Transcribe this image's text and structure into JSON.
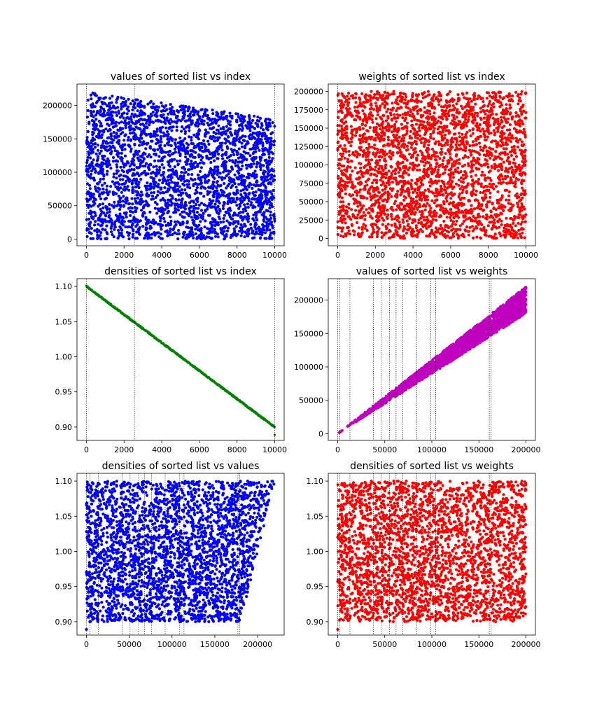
{
  "figure": {
    "panels": [
      {
        "id": "p1",
        "title": "values of sorted list vs index",
        "type": "scatter",
        "color": "#0000ff",
        "xlim": [
          -500,
          10500
        ],
        "ylim": [
          -10000,
          232000
        ],
        "xticks": [
          0,
          2000,
          4000,
          6000,
          8000,
          10000
        ],
        "yticks": [
          0,
          50000,
          100000,
          150000,
          200000
        ],
        "vlines": [
          0,
          2550,
          10000
        ],
        "shape": {
          "kind": "band",
          "x": [
            0,
            10000
          ],
          "ylow": [
            0,
            0
          ],
          "yhigh": [
            220000,
            180000
          ]
        },
        "n_points": 3000
      },
      {
        "id": "p2",
        "title": "weights of sorted list vs index",
        "type": "scatter",
        "color": "#ff0000",
        "xlim": [
          -500,
          10500
        ],
        "ylim": [
          -10000,
          210000
        ],
        "xticks": [
          0,
          2000,
          4000,
          6000,
          8000,
          10000
        ],
        "yticks": [
          0,
          25000,
          50000,
          75000,
          100000,
          125000,
          150000,
          175000,
          200000
        ],
        "vlines": [
          0,
          2550,
          10000
        ],
        "shape": {
          "kind": "band",
          "x": [
            0,
            10000
          ],
          "ylow": [
            0,
            0
          ],
          "yhigh": [
            200000,
            200000
          ]
        },
        "n_points": 3000
      },
      {
        "id": "p3",
        "title": "densities of sorted list vs index",
        "type": "scatter",
        "color": "#008000",
        "xlim": [
          -500,
          10500
        ],
        "ylim": [
          0.881,
          1.111
        ],
        "xticks": [
          0,
          2000,
          4000,
          6000,
          8000,
          10000
        ],
        "yticks": [
          0.9,
          0.95,
          1.0,
          1.05,
          1.1
        ],
        "vlines": [
          0,
          2550,
          10000
        ],
        "shape": {
          "kind": "line",
          "x": [
            0,
            10000
          ],
          "y": [
            1.1,
            0.9
          ],
          "jitter": 0.002,
          "outliers": [
            [
              10000,
              0.889
            ]
          ]
        },
        "n_points": 700
      },
      {
        "id": "p4",
        "title": "values of sorted list vs weights",
        "type": "scatter",
        "color": "#bf00bf",
        "xlim": [
          -10000,
          210000
        ],
        "ylim": [
          -10000,
          232000
        ],
        "xticks": [
          0,
          50000,
          100000,
          150000,
          200000
        ],
        "yticks": [
          0,
          50000,
          100000,
          150000,
          200000
        ],
        "vlines": [
          0,
          2000,
          13000,
          38000,
          46000,
          55000,
          62000,
          69000,
          84000,
          99000,
          104000,
          161000,
          163000
        ],
        "shape": {
          "kind": "wedge",
          "x": [
            0,
            200000
          ],
          "slope_low": 0.9,
          "slope_high": 1.1
        },
        "n_points": 2500
      },
      {
        "id": "p5",
        "title": "densities of sorted list vs values",
        "type": "scatter",
        "color": "#0000ff",
        "xlim": [
          -11000,
          231000
        ],
        "ylim": [
          0.881,
          1.111
        ],
        "xticks": [
          0,
          50000,
          100000,
          150000,
          200000
        ],
        "yticks": [
          0.9,
          0.95,
          1.0,
          1.05,
          1.1
        ],
        "vlines": [
          0,
          4000,
          14000,
          42000,
          51000,
          61000,
          68000,
          76000,
          92000,
          109000,
          114000,
          177000,
          179000
        ],
        "shape": {
          "kind": "trapezoid",
          "x": [
            0,
            220000
          ],
          "ylow": 0.9,
          "yhigh": 1.1,
          "right_edge": [
            [
              180000,
              0.9
            ],
            [
              220000,
              1.1
            ]
          ],
          "outliers": [
            [
              0,
              0.889
            ]
          ]
        },
        "n_points": 3000
      },
      {
        "id": "p6",
        "title": "densities of sorted list vs weights",
        "type": "scatter",
        "color": "#ff0000",
        "xlim": [
          -10000,
          210000
        ],
        "ylim": [
          0.881,
          1.111
        ],
        "xticks": [
          0,
          50000,
          100000,
          150000,
          200000
        ],
        "yticks": [
          0.9,
          0.95,
          1.0,
          1.05,
          1.1
        ],
        "vlines": [
          0,
          2000,
          13000,
          38000,
          46000,
          55000,
          62000,
          69000,
          84000,
          99000,
          104000,
          161000,
          163000
        ],
        "shape": {
          "kind": "band",
          "x": [
            0,
            200000
          ],
          "ylow": [
            0.9,
            0.9
          ],
          "yhigh": [
            1.1,
            1.1
          ],
          "outliers": [
            [
              0,
              0.889
            ]
          ]
        },
        "n_points": 3000
      }
    ]
  },
  "chart_data": [
    {
      "type": "scatter",
      "title": "values of sorted list vs index",
      "xlim": [
        -500,
        10500
      ],
      "ylim": [
        -10000,
        232000
      ],
      "grid": false,
      "description_range": {
        "x": [
          0,
          10000
        ],
        "y_top_at_x0": 220000,
        "y_top_at_x10000": 180000,
        "y_bottom": 0
      }
    },
    {
      "type": "scatter",
      "title": "weights of sorted list vs index",
      "xlim": [
        -500,
        10500
      ],
      "ylim": [
        -10000,
        210000
      ],
      "grid": false,
      "description_range": {
        "x": [
          0,
          10000
        ],
        "y": [
          0,
          200000
        ]
      }
    },
    {
      "type": "scatter",
      "title": "densities of sorted list vs index",
      "xlim": [
        -500,
        10500
      ],
      "ylim": [
        0.881,
        1.111
      ],
      "grid": false,
      "description_range": {
        "x": [
          0,
          10000
        ],
        "y_start": 1.1,
        "y_end": 0.9
      }
    },
    {
      "type": "scatter",
      "title": "values of sorted list vs weights",
      "xlim": [
        -10000,
        210000
      ],
      "ylim": [
        -10000,
        232000
      ],
      "grid": false,
      "description_range": {
        "x": [
          0,
          200000
        ],
        "y_max": 220000,
        "y_min_at_xmax": 180000
      }
    },
    {
      "type": "scatter",
      "title": "densities of sorted list vs values",
      "xlim": [
        -11000,
        231000
      ],
      "ylim": [
        0.881,
        1.111
      ],
      "grid": false,
      "description_range": {
        "x": [
          0,
          220000
        ],
        "y": [
          0.9,
          1.1
        ]
      }
    },
    {
      "type": "scatter",
      "title": "densities of sorted list vs weights",
      "xlim": [
        -10000,
        210000
      ],
      "ylim": [
        0.881,
        1.111
      ],
      "grid": false,
      "description_range": {
        "x": [
          0,
          200000
        ],
        "y": [
          0.9,
          1.1
        ]
      }
    }
  ]
}
